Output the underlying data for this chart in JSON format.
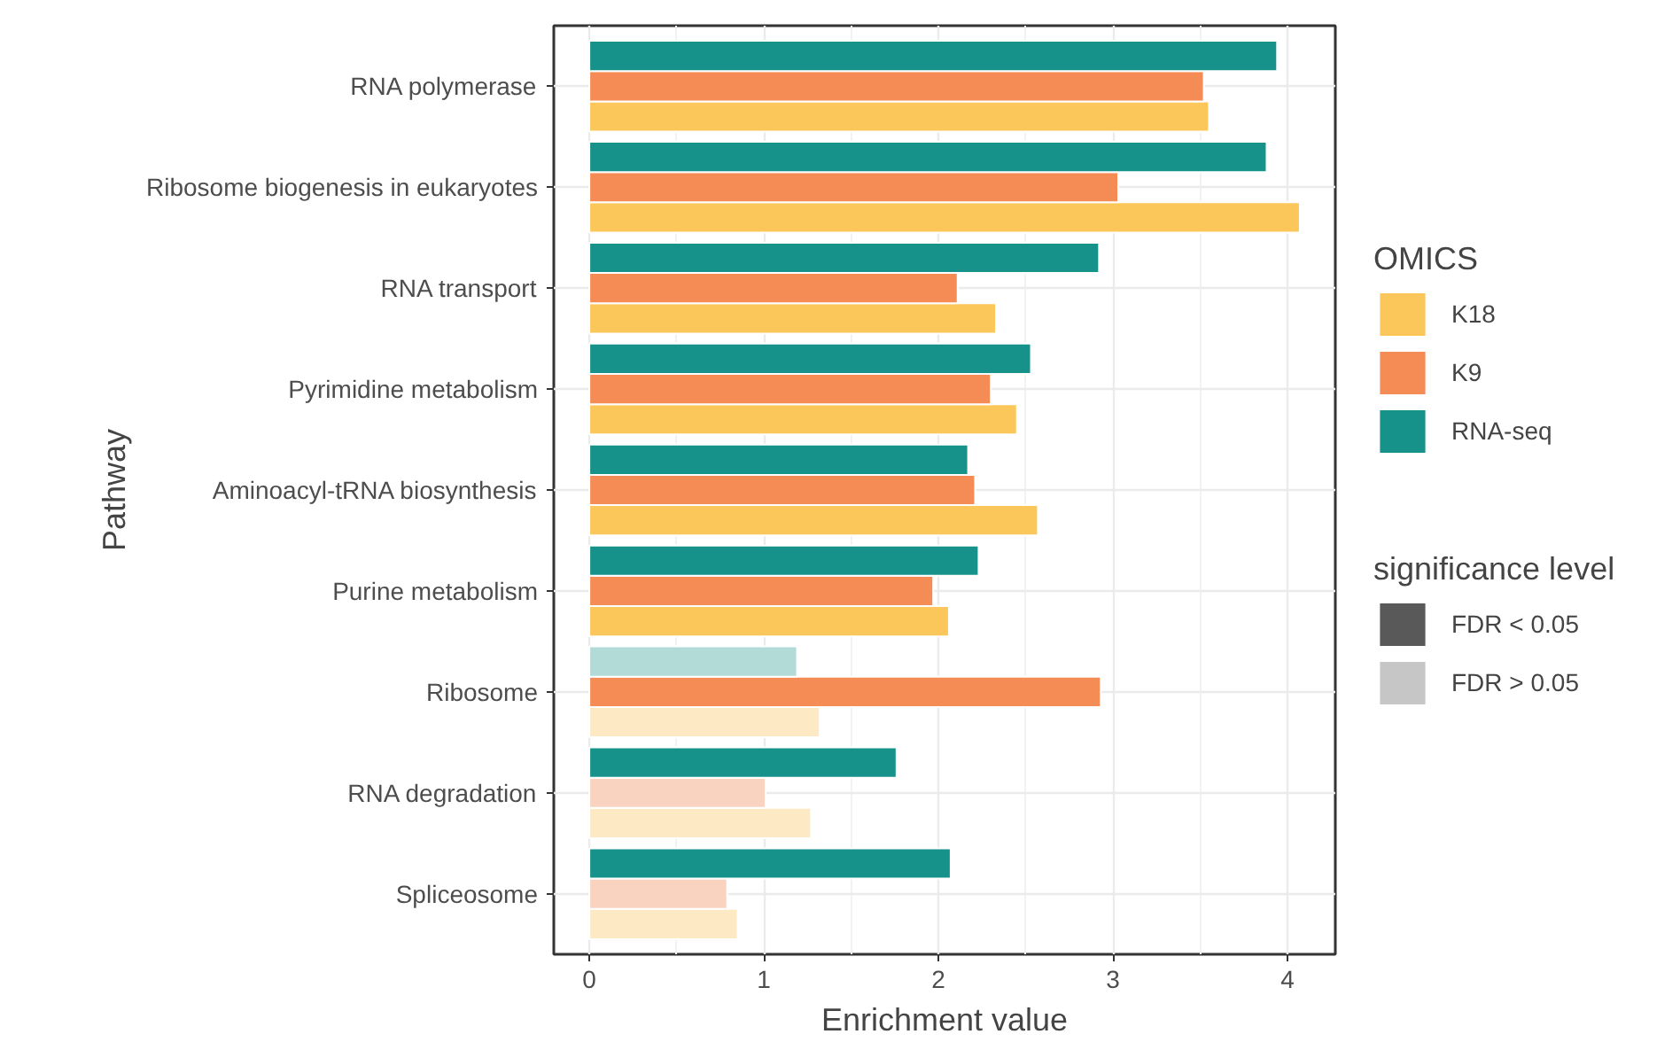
{
  "chart_data": {
    "type": "bar",
    "orientation": "horizontal",
    "xlabel": "Enrichment value",
    "ylabel": "Pathway",
    "categories": [
      "RNA polymerase",
      "Ribosome biogenesis in eukaryotes",
      "RNA transport",
      "Pyrimidine metabolism",
      "Aminoacyl-tRNA biosynthesis",
      "Purine metabolism",
      "Ribosome",
      "RNA degradation",
      "Spliceosome"
    ],
    "series": [
      {
        "name": "K18",
        "color": "#fcc75a",
        "values": [
          3.55,
          4.07,
          2.33,
          2.45,
          2.57,
          2.06,
          1.32,
          1.27,
          0.85
        ],
        "colors": [
          "#fcc75a",
          "#fcc75a",
          "#fcc75a",
          "#fcc75a",
          "#fcc75a",
          "#fcc75a",
          "#fde9c4",
          "#fde9c4",
          "#fde9c4"
        ]
      },
      {
        "name": "K9",
        "color": "#f68c55",
        "values": [
          3.52,
          3.03,
          2.11,
          2.3,
          2.21,
          1.97,
          2.93,
          1.01,
          0.79
        ],
        "colors": [
          "#f68c55",
          "#f68c55",
          "#f68c55",
          "#f68c55",
          "#f68c55",
          "#f68c55",
          "#f68c55",
          "#fad3c0",
          "#fad3c0"
        ]
      },
      {
        "name": "RNA-seq",
        "color": "#17928a",
        "values": [
          3.94,
          3.88,
          2.92,
          2.53,
          2.17,
          2.23,
          1.19,
          1.76,
          2.07
        ],
        "colors": [
          "#17928a",
          "#17928a",
          "#17928a",
          "#17928a",
          "#17928a",
          "#17928a",
          "#b2dbd8",
          "#17928a",
          "#17928a"
        ]
      },
      {
        "name": "FDR < 0.05",
        "color": "#595959",
        "values": [
          null,
          null,
          null,
          null,
          null,
          null,
          null,
          null,
          null
        ]
      },
      {
        "name": "FDR > 0.05",
        "color": "#c6c6c6",
        "values": [
          null,
          null,
          null,
          null,
          null,
          null,
          null,
          null,
          null
        ]
      }
    ],
    "legend_title": [
      "OMICS",
      "significance level"
    ],
    "xlim": [
      -0.2035,
      4.2735
    ],
    "xticks": [
      0,
      1,
      2,
      3,
      4
    ],
    "grid": true,
    "legend": "right"
  }
}
